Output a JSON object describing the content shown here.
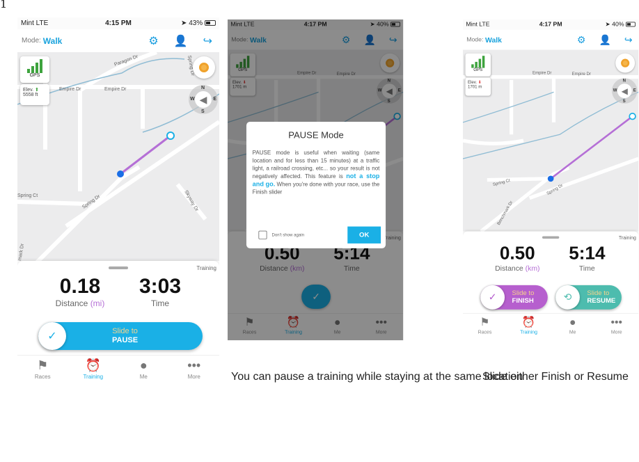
{
  "page_number": "1",
  "colors": {
    "accent": "#1ab0e6",
    "route": "#b56fd6",
    "finish": "#b65fce",
    "resume": "#4dbcae",
    "pause": "#1ab0e6",
    "gps_bars": "#3ea33e"
  },
  "screens": [
    {
      "status": {
        "carrier": "Mint  LTE",
        "time": "4:15 PM",
        "battery": "43%",
        "battery_level": 0.43
      },
      "header": {
        "mode_label": "Mode:",
        "mode_value": "Walk",
        "icons": [
          "gear-icon",
          "voice-icon",
          "share-icon"
        ]
      },
      "map": {
        "gps_label": "GPS",
        "elev_label": "Elev.",
        "elev_value": "5558 ft",
        "elev_trend": "up",
        "compass": {
          "n": "N",
          "w": "W",
          "e": "E",
          "s": "S"
        },
        "streets": [
          "Paragon Dr",
          "Spring Dr",
          "Empire Dr",
          "Empire Dr",
          "Spring Ct",
          "Spring Dr",
          "Skyway Dr",
          "mark Dr"
        ]
      },
      "sheet": {
        "tag": "Training",
        "distance": "0.18",
        "distance_label": "Distance",
        "distance_unit": "(mi)",
        "time": "3:03",
        "time_label": "Time",
        "slider": {
          "line1": "Slide to",
          "line2": "PAUSE"
        }
      }
    },
    {
      "status": {
        "carrier": "Mint  LTE",
        "time": "4:17 PM",
        "battery": "40%",
        "battery_level": 0.4
      },
      "header": {
        "mode_label": "Mode:",
        "mode_value": "Walk"
      },
      "map": {
        "gps_label": "GPS",
        "elev_label": "Elev.",
        "elev_value": "1701 m",
        "elev_trend": "down",
        "compass": {
          "n": "N",
          "w": "W",
          "e": "E",
          "s": "S"
        },
        "streets": [
          "Empire Dr",
          "Empire Dr"
        ]
      },
      "sheet": {
        "tag": "Training",
        "distance": "0.50",
        "distance_label": "Distance",
        "distance_unit": "(km)",
        "time": "5:14",
        "time_label": "Time"
      },
      "dialog": {
        "title": "PAUSE Mode",
        "body_1": "PAUSE mode is useful when waiting (same location and for less than 15 minutes) at a traffic light, a railroad crossing, etc... so your result is not negatively affected. This feature is ",
        "highlight": "not a stop and go.",
        "body_2": " When you're done with your race, use the Finish slider",
        "checkbox_label": "Don't show again",
        "checked": false,
        "ok": "OK"
      }
    },
    {
      "status": {
        "carrier": "Mint  LTE",
        "time": "4:17 PM",
        "battery": "40%",
        "battery_level": 0.4
      },
      "header": {
        "mode_label": "Mode:",
        "mode_value": "Walk"
      },
      "map": {
        "gps_label": "GPS",
        "elev_label": "Elev.",
        "elev_value": "1701 m",
        "elev_trend": "down",
        "compass": {
          "n": "N",
          "w": "W",
          "e": "E",
          "s": "S"
        },
        "streets": [
          "Empire Dr",
          "Empire Dr",
          "Spring Ct",
          "Spring Dr",
          "Benchmark Dr"
        ]
      },
      "sheet": {
        "tag": "Training",
        "distance": "0.50",
        "distance_label": "Distance",
        "distance_unit": "(km)",
        "time": "5:14",
        "time_label": "Time",
        "finish": {
          "line1": "Slide to",
          "line2": "FINISH"
        },
        "resume": {
          "line1": "Slide to",
          "line2": "RESUME"
        }
      }
    }
  ],
  "tabs": [
    {
      "label": "Races",
      "icon": "flag-icon"
    },
    {
      "label": "Training",
      "icon": "alarm-clock-icon",
      "active": true
    },
    {
      "label": "Me",
      "icon": "person-icon"
    },
    {
      "label": "More",
      "icon": "more-icon"
    }
  ],
  "captions": {
    "middle": "You can pause a training while staying at the same location",
    "right": "Slide either Finish or Resume"
  }
}
